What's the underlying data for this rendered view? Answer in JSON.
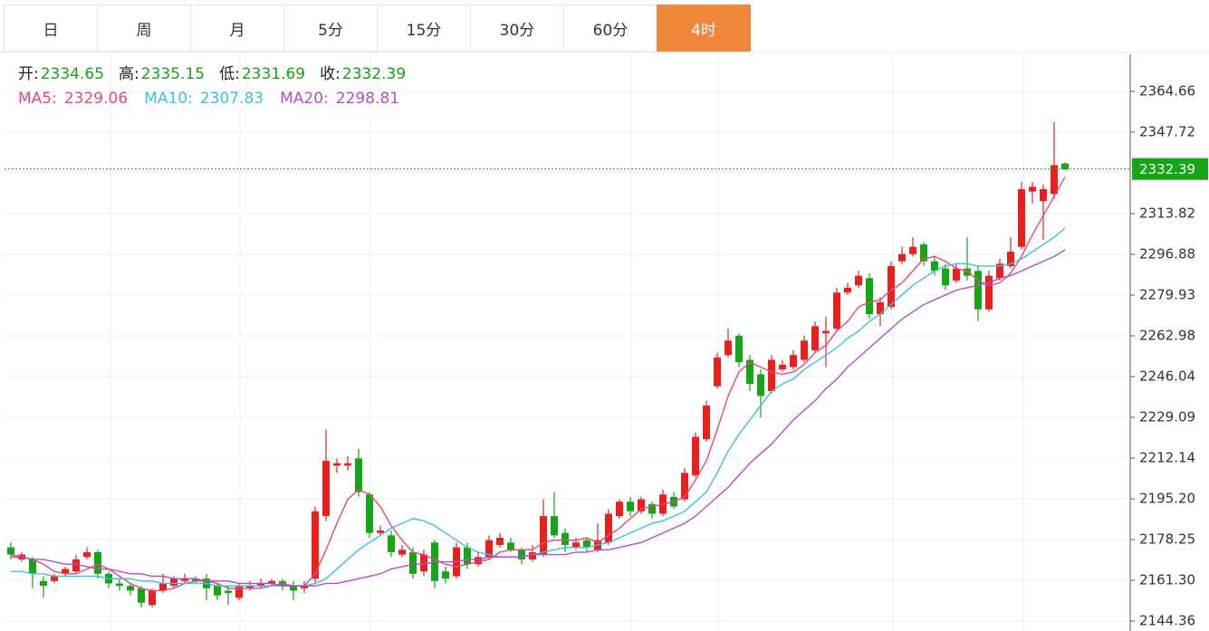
{
  "tabs": [
    "日",
    "周",
    "月",
    "5分",
    "15分",
    "30分",
    "60分",
    "4时"
  ],
  "active_tab": 7,
  "chart_data": {
    "type": "candlestick",
    "header": [
      {
        "label": "开:",
        "value": 2334.65
      },
      {
        "label": "高:",
        "value": 2335.15
      },
      {
        "label": "低:",
        "value": 2331.69
      },
      {
        "label": "收:",
        "value": 2332.39
      }
    ],
    "up_color": "#e8211e",
    "down_color": "#16a516",
    "header_value_color": "#16a516",
    "open": [
      2175,
      2170,
      2170,
      2161,
      2161,
      2164,
      2165,
      2171,
      2173,
      2164,
      2160,
      2159,
      2158,
      2151,
      2157,
      2159,
      2161,
      2162,
      2162,
      2159,
      2157,
      2154,
      2158,
      2159,
      2160,
      2161,
      2159,
      2158,
      2162,
      2188,
      2209,
      2209,
      2212,
      2197,
      2181,
      2180,
      2172,
      2173,
      2165,
      2177,
      2165,
      2163,
      2175,
      2168,
      2171,
      2176,
      2177,
      2174,
      2170,
      2172,
      2188,
      2181,
      2175,
      2178,
      2174,
      2177,
      2188,
      2194,
      2190,
      2193,
      2189,
      2196,
      2195,
      2205,
      2220,
      2242,
      2255,
      2263,
      2253,
      2247,
      2240,
      2249,
      2250,
      2253,
      2257,
      2264,
      2266,
      2281,
      2284,
      2287,
      2272,
      2275,
      2294,
      2297,
      2301,
      2294,
      2291,
      2286,
      2291,
      2290,
      2274,
      2287,
      2292,
      2300,
      2323,
      2319,
      2322,
      2334.65
    ],
    "high": [
      2177,
      2173,
      2171,
      2163,
      2164,
      2167,
      2172,
      2175,
      2174,
      2165,
      2162,
      2160,
      2159,
      2158,
      2164,
      2163,
      2164,
      2163,
      2164,
      2160,
      2159,
      2160,
      2161,
      2162,
      2162,
      2162,
      2161,
      2161,
      2192,
      2224,
      2212,
      2213,
      2216,
      2198,
      2184,
      2182,
      2176,
      2175,
      2174,
      2178,
      2167,
      2177,
      2177,
      2173,
      2180,
      2181,
      2179,
      2175,
      2176,
      2195,
      2198,
      2183,
      2179,
      2179,
      2185,
      2191,
      2195,
      2196,
      2196,
      2194,
      2199,
      2198,
      2208,
      2223,
      2236,
      2256,
      2266,
      2264,
      2255,
      2249,
      2255,
      2253,
      2257,
      2263,
      2269,
      2271,
      2283,
      2285,
      2290,
      2289,
      2279,
      2294,
      2300,
      2304,
      2302,
      2296,
      2293,
      2293,
      2304,
      2292,
      2290,
      2295,
      2304,
      2327,
      2327,
      2326,
      2352,
      2335.15
    ],
    "low": [
      2170,
      2169,
      2158,
      2154,
      2160,
      2163,
      2164,
      2170,
      2162,
      2158,
      2157,
      2155,
      2150,
      2150,
      2156,
      2158,
      2160,
      2160,
      2153,
      2153,
      2151,
      2153,
      2157,
      2158,
      2159,
      2157,
      2153,
      2156,
      2160,
      2186,
      2206,
      2207,
      2196,
      2179,
      2180,
      2171,
      2171,
      2162,
      2163,
      2158,
      2160,
      2162,
      2166,
      2167,
      2170,
      2175,
      2173,
      2168,
      2169,
      2171,
      2179,
      2173,
      2174,
      2173,
      2173,
      2176,
      2187,
      2188,
      2189,
      2187,
      2188,
      2191,
      2194,
      2204,
      2219,
      2241,
      2254,
      2250,
      2240,
      2229,
      2239,
      2248,
      2249,
      2252,
      2256,
      2250,
      2265,
      2280,
      2283,
      2270,
      2267,
      2274,
      2293,
      2296,
      2292,
      2288,
      2282,
      2285,
      2286,
      2269,
      2273,
      2286,
      2291,
      2299,
      2318,
      2303,
      2320,
      2331.69
    ],
    "close": [
      2172,
      2172,
      2164,
      2159,
      2163,
      2166,
      2170,
      2173,
      2164,
      2160,
      2159,
      2157,
      2152,
      2157,
      2160,
      2162,
      2162,
      2161,
      2158,
      2155,
      2156,
      2159,
      2159,
      2160,
      2161,
      2159,
      2157,
      2159,
      2190,
      2211,
      2210,
      2210,
      2198,
      2181,
      2182,
      2173,
      2174,
      2164,
      2172,
      2161,
      2162,
      2175,
      2168,
      2171,
      2178,
      2179,
      2174,
      2170,
      2173,
      2188,
      2180,
      2176,
      2177,
      2175,
      2178,
      2189,
      2194,
      2190,
      2195,
      2189,
      2197,
      2192,
      2206,
      2221,
      2234,
      2254,
      2261,
      2252,
      2243,
      2238,
      2253,
      2251,
      2255,
      2261,
      2267,
      2265,
      2281,
      2283,
      2288,
      2272,
      2277,
      2292,
      2297,
      2300,
      2294,
      2290,
      2284,
      2291,
      2288,
      2274,
      2288,
      2293,
      2298,
      2324,
      2325,
      2324,
      2334,
      2332.39
    ],
    "ma": [
      {
        "label": "MA5:",
        "color": "#e8477e",
        "last": 2329.06,
        "values": [
          2172,
          2171,
          2170,
          2168,
          2165,
          2164,
          2164,
          2166,
          2168,
          2166,
          2163,
          2160,
          2158,
          2157,
          2157,
          2158,
          2160,
          2161,
          2161,
          2160,
          2158,
          2158,
          2158,
          2158,
          2159,
          2160,
          2159,
          2159,
          2164,
          2174,
          2185,
          2195,
          2199,
          2197,
          2192,
          2184,
          2178,
          2173,
          2172,
          2170,
          2168,
          2167,
          2168,
          2169,
          2170,
          2173,
          2174,
          2174,
          2174,
          2177,
          2178,
          2178,
          2178,
          2179,
          2177,
          2180,
          2183,
          2187,
          2191,
          2192,
          2193,
          2194,
          2196,
          2203,
          2211,
          2224,
          2238,
          2248,
          2252,
          2250,
          2248,
          2247,
          2248,
          2251,
          2256,
          2259,
          2265,
          2269,
          2275,
          2277,
          2278,
          2282,
          2285,
          2290,
          2295,
          2296,
          2294,
          2291,
          2290,
          2286,
          2284,
          2285,
          2289,
          2296,
          2305,
          2313,
          2321,
          2329.06
        ]
      },
      {
        "label": "MA10:",
        "color": "#3cc3da",
        "last": 2307.83,
        "values": [
          2165,
          2165,
          2164,
          2164,
          2163,
          2163,
          2163,
          2163,
          2163,
          2162,
          2162,
          2162,
          2161,
          2161,
          2160,
          2160,
          2160,
          2160,
          2160,
          2159,
          2159,
          2159,
          2159,
          2159,
          2159,
          2159,
          2159,
          2159,
          2160,
          2162,
          2166,
          2170,
          2174,
          2177,
          2180,
          2183,
          2185,
          2187,
          2186,
          2184,
          2181,
          2178,
          2175,
          2173,
          2172,
          2171,
          2171,
          2171,
          2172,
          2173,
          2174,
          2175,
          2175,
          2175,
          2176,
          2177,
          2179,
          2181,
          2183,
          2185,
          2186,
          2188,
          2190,
          2194,
          2198,
          2206,
          2215,
          2222,
          2228,
          2234,
          2240,
          2243,
          2245,
          2249,
          2252,
          2255,
          2258,
          2262,
          2265,
          2269,
          2272,
          2276,
          2280,
          2284,
          2287,
          2290,
          2292,
          2293,
          2293,
          2292,
          2292,
          2292,
          2293,
          2295,
          2298,
          2301,
          2304,
          2307.83
        ]
      },
      {
        "label": "MA20:",
        "color": "#b24fc4",
        "last": 2298.81,
        "values": [
          2171,
          2171,
          2170,
          2170,
          2169,
          2168,
          2168,
          2167,
          2166,
          2166,
          2165,
          2164,
          2164,
          2163,
          2163,
          2162,
          2162,
          2162,
          2161,
          2161,
          2161,
          2160,
          2160,
          2160,
          2160,
          2159,
          2159,
          2159,
          2159,
          2160,
          2160,
          2161,
          2162,
          2163,
          2164,
          2166,
          2167,
          2168,
          2168,
          2169,
          2169,
          2169,
          2170,
          2170,
          2171,
          2171,
          2171,
          2171,
          2172,
          2172,
          2172,
          2172,
          2173,
          2173,
          2174,
          2174,
          2175,
          2176,
          2177,
          2179,
          2181,
          2183,
          2185,
          2188,
          2192,
          2196,
          2200,
          2205,
          2210,
          2214,
          2218,
          2223,
          2228,
          2232,
          2236,
          2241,
          2245,
          2250,
          2254,
          2258,
          2262,
          2266,
          2270,
          2273,
          2276,
          2278,
          2280,
          2282,
          2283,
          2284,
          2285,
          2287,
          2288,
          2290,
          2292,
          2294,
          2296,
          2298.81
        ]
      }
    ],
    "last_price": 2332.39,
    "ylim": [
      2140.22,
      2380.1
    ],
    "yticks": [
      2144.36,
      {
        "value": 2161.3,
        "label": "2161.30"
      },
      2178.25,
      {
        "value": 2195.2,
        "label": "2195.20"
      },
      2212.14,
      2229.09,
      2246.04,
      2262.98,
      2279.93,
      2296.88,
      2313.82,
      2347.72,
      2364.66
    ],
    "grid": true
  }
}
